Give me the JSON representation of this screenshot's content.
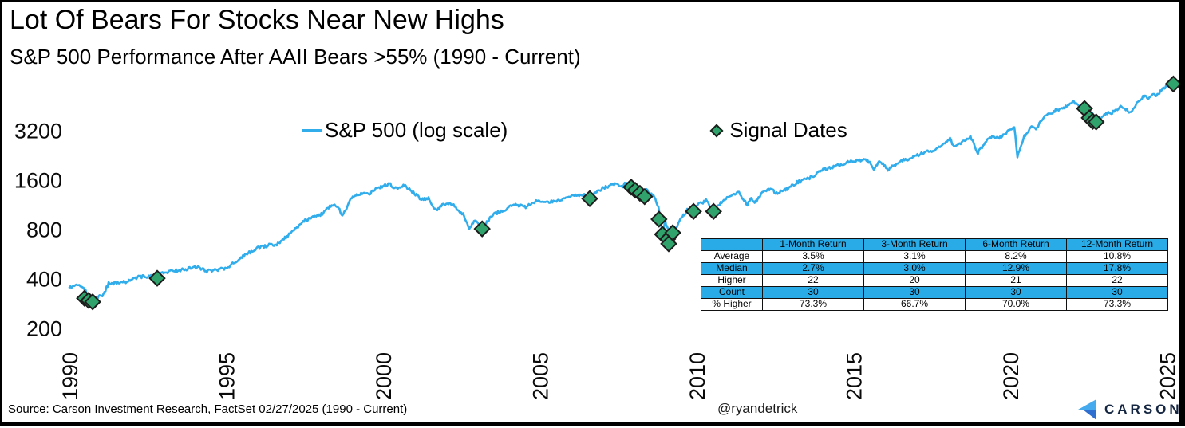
{
  "title": "Lot Of Bears For Stocks Near New Highs",
  "subtitle": "S&P 500 Performance After AAII Bears >55% (1990 - Current)",
  "legend": {
    "line_label": "S&P 500 (log scale)",
    "marker_label": "Signal Dates"
  },
  "colors": {
    "line": "#31ADEC",
    "marker_fill": "#2FA36B",
    "marker_stroke": "#1d1d1d",
    "table_blue": "#29ABE8",
    "logo_light": "#45AAEE",
    "logo_dark": "#2F6FD0",
    "logo_text": "#152642"
  },
  "chart_data": {
    "type": "line",
    "title": "Lot Of Bears For Stocks Near New Highs",
    "subtitle": "S&P 500 Performance After AAII Bears >55% (1990 - Current)",
    "y_scale": "log",
    "grid": false,
    "legend_position": "top-center",
    "x_range": [
      1990,
      2025.4
    ],
    "y_ticks": [
      3200,
      1600,
      800,
      400,
      200
    ],
    "x_ticks": [
      1990,
      1995,
      2000,
      2005,
      2010,
      2015,
      2020,
      2025
    ],
    "series": [
      {
        "name": "S&P 500 (log scale)",
        "points": [
          [
            1990.0,
            355
          ],
          [
            1990.25,
            368
          ],
          [
            1990.45,
            350
          ],
          [
            1990.58,
            330
          ],
          [
            1990.78,
            298
          ],
          [
            1990.9,
            310
          ],
          [
            1991.05,
            315
          ],
          [
            1991.25,
            375
          ],
          [
            1991.6,
            380
          ],
          [
            1991.9,
            388
          ],
          [
            1992.2,
            412
          ],
          [
            1992.6,
            415
          ],
          [
            1993.0,
            438
          ],
          [
            1993.6,
            455
          ],
          [
            1994.1,
            475
          ],
          [
            1994.35,
            445
          ],
          [
            1994.7,
            455
          ],
          [
            1995.0,
            465
          ],
          [
            1995.5,
            545
          ],
          [
            1996.0,
            618
          ],
          [
            1996.4,
            645
          ],
          [
            1996.55,
            635
          ],
          [
            1997.0,
            745
          ],
          [
            1997.45,
            890
          ],
          [
            1997.6,
            920
          ],
          [
            1997.8,
            950
          ],
          [
            1998.0,
            975
          ],
          [
            1998.3,
            1100
          ],
          [
            1998.55,
            1120
          ],
          [
            1998.7,
            960
          ],
          [
            1999.0,
            1250
          ],
          [
            1999.3,
            1320
          ],
          [
            1999.6,
            1330
          ],
          [
            1999.8,
            1420
          ],
          [
            2000.2,
            1520
          ],
          [
            2000.4,
            1420
          ],
          [
            2000.65,
            1490
          ],
          [
            2001.0,
            1330
          ],
          [
            2001.2,
            1220
          ],
          [
            2001.45,
            1240
          ],
          [
            2001.7,
            1040
          ],
          [
            2001.95,
            1150
          ],
          [
            2002.25,
            1120
          ],
          [
            2002.55,
            990
          ],
          [
            2002.75,
            800
          ],
          [
            2002.9,
            900
          ],
          [
            2003.0,
            880
          ],
          [
            2003.18,
            820
          ],
          [
            2003.5,
            990
          ],
          [
            2003.9,
            1060
          ],
          [
            2004.2,
            1140
          ],
          [
            2004.55,
            1100
          ],
          [
            2004.95,
            1210
          ],
          [
            2005.3,
            1170
          ],
          [
            2005.7,
            1230
          ],
          [
            2006.0,
            1280
          ],
          [
            2006.35,
            1310
          ],
          [
            2006.55,
            1250
          ],
          [
            2007.0,
            1430
          ],
          [
            2007.4,
            1520
          ],
          [
            2007.6,
            1450
          ],
          [
            2007.78,
            1560
          ],
          [
            2008.0,
            1380
          ],
          [
            2008.2,
            1330
          ],
          [
            2008.4,
            1400
          ],
          [
            2008.65,
            1260
          ],
          [
            2008.78,
            1100
          ],
          [
            2008.85,
            880
          ],
          [
            2008.92,
            750
          ],
          [
            2009.0,
            900
          ],
          [
            2009.05,
            840
          ],
          [
            2009.18,
            680
          ],
          [
            2009.45,
            900
          ],
          [
            2009.7,
            1050
          ],
          [
            2010.0,
            1120
          ],
          [
            2010.3,
            1200
          ],
          [
            2010.52,
            1030
          ],
          [
            2010.8,
            1180
          ],
          [
            2011.1,
            1290
          ],
          [
            2011.35,
            1340
          ],
          [
            2011.62,
            1130
          ],
          [
            2011.72,
            1250
          ],
          [
            2011.85,
            1160
          ],
          [
            2012.1,
            1350
          ],
          [
            2012.35,
            1410
          ],
          [
            2012.55,
            1330
          ],
          [
            2012.9,
            1420
          ],
          [
            2013.2,
            1550
          ],
          [
            2013.6,
            1650
          ],
          [
            2014.0,
            1840
          ],
          [
            2014.5,
            1960
          ],
          [
            2014.85,
            2070
          ],
          [
            2015.2,
            2100
          ],
          [
            2015.45,
            2120
          ],
          [
            2015.65,
            1880
          ],
          [
            2015.85,
            2080
          ],
          [
            2016.1,
            1850
          ],
          [
            2016.5,
            2100
          ],
          [
            2016.85,
            2180
          ],
          [
            2017.2,
            2350
          ],
          [
            2017.6,
            2440
          ],
          [
            2018.08,
            2870
          ],
          [
            2018.18,
            2600
          ],
          [
            2018.45,
            2720
          ],
          [
            2018.73,
            2930
          ],
          [
            2018.97,
            2350
          ],
          [
            2019.3,
            2900
          ],
          [
            2019.55,
            2950
          ],
          [
            2019.65,
            2880
          ],
          [
            2020.0,
            3230
          ],
          [
            2020.13,
            3380
          ],
          [
            2020.23,
            2240
          ],
          [
            2020.45,
            2950
          ],
          [
            2020.68,
            3450
          ],
          [
            2020.82,
            3300
          ],
          [
            2021.1,
            3900
          ],
          [
            2021.45,
            4250
          ],
          [
            2021.7,
            4400
          ],
          [
            2021.9,
            4600
          ],
          [
            2022.0,
            4790
          ],
          [
            2022.2,
            4450
          ],
          [
            2022.35,
            4350
          ],
          [
            2022.47,
            3670
          ],
          [
            2022.62,
            4150
          ],
          [
            2022.75,
            3580
          ],
          [
            2023.0,
            4070
          ],
          [
            2023.25,
            4130
          ],
          [
            2023.55,
            4550
          ],
          [
            2023.82,
            4120
          ],
          [
            2024.1,
            4900
          ],
          [
            2024.3,
            5230
          ],
          [
            2024.4,
            5050
          ],
          [
            2024.58,
            5460
          ],
          [
            2024.63,
            5200
          ],
          [
            2024.85,
            5700
          ],
          [
            2025.0,
            6050
          ],
          [
            2025.12,
            5950
          ],
          [
            2025.3,
            6130
          ]
        ]
      }
    ],
    "signal_dates": [
      [
        1990.48,
        305
      ],
      [
        1990.61,
        296
      ],
      [
        1990.74,
        290
      ],
      [
        1992.8,
        404
      ],
      [
        2003.16,
        808
      ],
      [
        2006.59,
        1235
      ],
      [
        2007.91,
        1450
      ],
      [
        2008.04,
        1390
      ],
      [
        2008.19,
        1330
      ],
      [
        2008.34,
        1270
      ],
      [
        2008.8,
        925
      ],
      [
        2008.91,
        748
      ],
      [
        2009.08,
        700
      ],
      [
        2009.11,
        655
      ],
      [
        2009.24,
        765
      ],
      [
        2009.9,
        1032
      ],
      [
        2010.54,
        1032
      ],
      [
        2022.37,
        4367
      ],
      [
        2022.52,
        3830
      ],
      [
        2022.63,
        3650
      ],
      [
        2022.74,
        3620
      ],
      [
        2025.2,
        6160
      ]
    ]
  },
  "table": {
    "columns": [
      "",
      "1-Month Return",
      "3-Month Return",
      "6-Month Return",
      "12-Month Return"
    ],
    "rows": [
      {
        "label": "Average",
        "values": [
          "3.5%",
          "3.1%",
          "8.2%",
          "10.8%"
        ],
        "highlight": false
      },
      {
        "label": "Median",
        "values": [
          "2.7%",
          "3.0%",
          "12.9%",
          "17.8%"
        ],
        "highlight": true
      },
      {
        "label": "Higher",
        "values": [
          "22",
          "20",
          "21",
          "22"
        ],
        "highlight": false
      },
      {
        "label": "Count",
        "values": [
          "30",
          "30",
          "30",
          "30"
        ],
        "highlight": true
      },
      {
        "label": "% Higher",
        "values": [
          "73.3%",
          "66.7%",
          "70.0%",
          "73.3%"
        ],
        "highlight": false
      }
    ]
  },
  "footer": {
    "source": "Source: Carson Investment Research, FactSet 02/27/2025 (1990 - Current)",
    "handle": "@ryandetrick",
    "logo_text": "CARSON"
  }
}
